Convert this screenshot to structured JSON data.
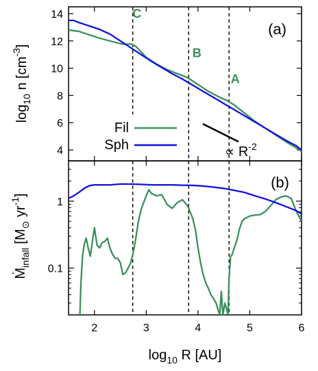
{
  "colors": {
    "fil": "#3a8f5c",
    "sph": "#1010e0",
    "annot": "#3a8f5c",
    "axis": "#000000"
  },
  "shared": {
    "xlabel": "log",
    "xlabel_sub": "10",
    "xlabel_rest": " R [AU]",
    "xlim": [
      1.5,
      6.0
    ],
    "xticks": [
      2,
      3,
      4,
      5,
      6
    ],
    "vlines": [
      2.74,
      3.82,
      4.6
    ]
  },
  "chart_data": [
    {
      "type": "line",
      "panel_label": "(a)",
      "ylabel_base": "log",
      "ylabel_sub": "10",
      "ylabel_mid": " n [cm",
      "ylabel_sup": "-3",
      "ylabel_end": "]",
      "ylim": [
        3.2,
        14.5
      ],
      "yticks": [
        4,
        6,
        8,
        10,
        12,
        14
      ],
      "legend": [
        {
          "name": "Fil",
          "series": 0
        },
        {
          "name": "Sph",
          "series": 1
        }
      ],
      "legend_position": "bottom-left",
      "annotations": [
        {
          "text": "C",
          "x": 2.82,
          "y": 13.7
        },
        {
          "text": "B",
          "x": 3.98,
          "y": 10.8
        },
        {
          "text": "A",
          "x": 4.72,
          "y": 8.9
        }
      ],
      "slope_text_base": "∝ R",
      "slope_text_sup": "-2",
      "vline_ymin": 6.6,
      "series": [
        {
          "name": "Fil",
          "x": [
            1.5,
            1.7,
            1.9,
            2.1,
            2.3,
            2.5,
            2.6,
            2.7,
            2.8,
            2.9,
            3.0,
            3.2,
            3.4,
            3.6,
            3.8,
            4.0,
            4.2,
            4.4,
            4.55,
            4.7,
            4.9,
            5.1,
            5.3,
            5.5,
            5.7,
            5.9,
            6.0
          ],
          "values": [
            12.8,
            12.7,
            12.45,
            12.2,
            12.0,
            11.8,
            11.75,
            11.78,
            11.6,
            11.2,
            10.8,
            10.3,
            9.9,
            9.6,
            9.3,
            8.8,
            8.3,
            7.9,
            7.65,
            7.3,
            6.7,
            6.1,
            5.6,
            5.1,
            4.6,
            4.15,
            3.9
          ]
        },
        {
          "name": "Sph",
          "x": [
            1.5,
            1.6,
            1.7,
            1.9,
            2.1,
            2.3,
            2.5,
            2.7,
            2.9,
            3.1,
            3.3,
            3.5,
            3.7,
            3.9,
            4.1,
            4.3,
            4.5,
            4.7,
            4.9,
            5.1,
            5.3,
            5.5,
            5.7,
            5.9,
            6.0
          ],
          "values": [
            13.5,
            13.5,
            13.35,
            13.1,
            12.85,
            12.5,
            12.0,
            11.5,
            11.0,
            10.5,
            10.05,
            9.6,
            9.2,
            8.75,
            8.3,
            7.85,
            7.4,
            6.95,
            6.5,
            6.05,
            5.6,
            5.15,
            4.7,
            4.3,
            4.0
          ]
        }
      ]
    },
    {
      "type": "line",
      "panel_label": "(b)",
      "ylabel_base": "Ṁ",
      "ylabel_sub": "infall",
      "ylabel_mid": " [M",
      "ylabel_msub": "⊙",
      "ylabel_end": " yr",
      "ylabel_sup": "-1",
      "ylabel_close": "]",
      "yscale": "log",
      "ylim": [
        0.02,
        4.0
      ],
      "yticks": [
        0.1,
        1
      ],
      "ytick_labels": [
        "0.1",
        "1"
      ],
      "series": [
        {
          "name": "Fil",
          "x": [
            1.72,
            1.74,
            1.77,
            1.8,
            1.84,
            1.88,
            1.92,
            1.96,
            2.0,
            2.05,
            2.1,
            2.15,
            2.2,
            2.25,
            2.3,
            2.35,
            2.4,
            2.45,
            2.5,
            2.55,
            2.6,
            2.65,
            2.7,
            2.75,
            2.8,
            2.85,
            2.9,
            2.95,
            3.0,
            3.05,
            3.1,
            3.2,
            3.3,
            3.4,
            3.5,
            3.6,
            3.7,
            3.8,
            3.85,
            3.9,
            3.95,
            4.0,
            4.05,
            4.1,
            4.15,
            4.2,
            4.25,
            4.3,
            4.35,
            4.38,
            4.42,
            4.45,
            4.48,
            4.52,
            4.55,
            4.58,
            4.6,
            4.63,
            4.66,
            4.7,
            4.75,
            4.8,
            4.85,
            4.9,
            5.0,
            5.1,
            5.2,
            5.3,
            5.4,
            5.5,
            5.6,
            5.7,
            5.8,
            5.9,
            6.0
          ],
          "values": [
            0.02,
            0.06,
            0.15,
            0.22,
            0.28,
            0.2,
            0.15,
            0.25,
            0.4,
            0.22,
            0.2,
            0.24,
            0.25,
            0.28,
            0.2,
            0.16,
            0.14,
            0.14,
            0.12,
            0.08,
            0.085,
            0.1,
            0.12,
            0.17,
            0.28,
            0.5,
            0.75,
            0.95,
            1.2,
            1.48,
            1.3,
            1.2,
            1.25,
            0.9,
            0.78,
            0.95,
            1.05,
            0.85,
            0.68,
            0.55,
            0.38,
            0.2,
            0.12,
            0.08,
            0.06,
            0.05,
            0.04,
            0.035,
            0.03,
            0.025,
            0.02,
            0.045,
            0.02,
            0.03,
            0.025,
            0.02,
            0.07,
            0.15,
            0.16,
            0.2,
            0.26,
            0.38,
            0.5,
            0.55,
            0.6,
            0.62,
            0.63,
            0.7,
            0.85,
            1.05,
            1.15,
            1.2,
            1.1,
            0.7,
            0.5
          ]
        },
        {
          "name": "Sph",
          "x": [
            1.5,
            1.6,
            1.7,
            1.8,
            1.9,
            2.0,
            2.1,
            2.3,
            2.5,
            2.7,
            2.9,
            3.1,
            3.3,
            3.5,
            3.7,
            3.9,
            4.1,
            4.3,
            4.5,
            4.7,
            4.9,
            5.1,
            5.3,
            5.5,
            5.7,
            5.9,
            6.0
          ],
          "values": [
            1.1,
            1.2,
            1.35,
            1.55,
            1.7,
            1.75,
            1.75,
            1.75,
            1.8,
            1.8,
            1.78,
            1.75,
            1.75,
            1.75,
            1.73,
            1.72,
            1.68,
            1.62,
            1.55,
            1.45,
            1.35,
            1.2,
            1.08,
            0.95,
            0.83,
            0.72,
            0.64
          ]
        }
      ]
    }
  ]
}
